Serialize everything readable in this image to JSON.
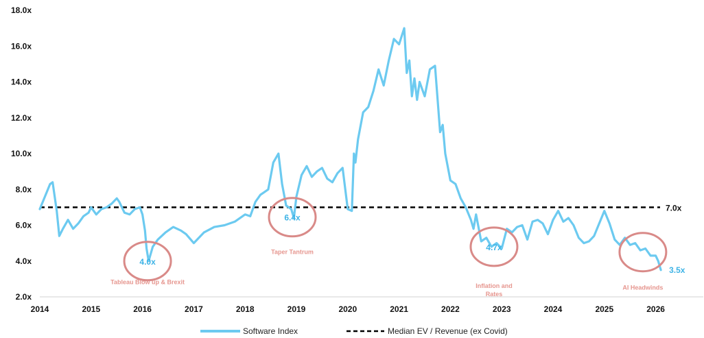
{
  "chart_data": {
    "type": "line",
    "xlim": [
      2014,
      2026.9
    ],
    "ylim": [
      2.0,
      18.0
    ],
    "x_ticks": [
      "2014",
      "2015",
      "2016",
      "2017",
      "2018",
      "2019",
      "2020",
      "2021",
      "2022",
      "2023",
      "2024",
      "2025",
      "2026"
    ],
    "y_ticks": [
      "2.0x",
      "4.0x",
      "6.0x",
      "8.0x",
      "10.0x",
      "12.0x",
      "14.0x",
      "16.0x",
      "18.0x"
    ],
    "grid": false,
    "legend_position": "bottom",
    "series": [
      {
        "name": "Software Index",
        "color": "#6ccaf0",
        "x": [
          2014.0,
          2014.1,
          2014.2,
          2014.25,
          2014.33,
          2014.38,
          2014.45,
          2014.55,
          2014.65,
          2014.75,
          2014.85,
          2014.95,
          2015.0,
          2015.1,
          2015.2,
          2015.3,
          2015.4,
          2015.5,
          2015.55,
          2015.65,
          2015.75,
          2015.85,
          2015.95,
          2016.0,
          2016.05,
          2016.08,
          2016.12,
          2016.2,
          2016.3,
          2016.45,
          2016.6,
          2016.75,
          2016.85,
          2017.0,
          2017.2,
          2017.4,
          2017.6,
          2017.8,
          2018.0,
          2018.1,
          2018.2,
          2018.3,
          2018.45,
          2018.55,
          2018.65,
          2018.72,
          2018.8,
          2018.9,
          2018.95,
          2019.0,
          2019.1,
          2019.2,
          2019.3,
          2019.4,
          2019.5,
          2019.6,
          2019.7,
          2019.8,
          2019.9,
          2020.0,
          2020.08,
          2020.12,
          2020.15,
          2020.2,
          2020.3,
          2020.4,
          2020.5,
          2020.6,
          2020.7,
          2020.8,
          2020.9,
          2021.0,
          2021.1,
          2021.15,
          2021.2,
          2021.25,
          2021.3,
          2021.35,
          2021.4,
          2021.5,
          2021.6,
          2021.7,
          2021.8,
          2021.85,
          2021.9,
          2022.0,
          2022.1,
          2022.2,
          2022.3,
          2022.4,
          2022.45,
          2022.5,
          2022.6,
          2022.7,
          2022.8,
          2022.9,
          2023.0,
          2023.1,
          2023.2,
          2023.3,
          2023.4,
          2023.5,
          2023.6,
          2023.7,
          2023.8,
          2023.9,
          2024.0,
          2024.1,
          2024.2,
          2024.3,
          2024.4,
          2024.5,
          2024.6,
          2024.7,
          2024.8,
          2024.9,
          2025.0,
          2025.1,
          2025.2,
          2025.3,
          2025.4,
          2025.5,
          2025.6,
          2025.7,
          2025.8,
          2025.9,
          2026.0,
          2026.05,
          2026.1
        ],
        "values": [
          6.9,
          7.6,
          8.3,
          8.4,
          6.8,
          5.4,
          5.8,
          6.3,
          5.8,
          6.1,
          6.5,
          6.7,
          7.0,
          6.6,
          6.9,
          7.0,
          7.2,
          7.5,
          7.3,
          6.7,
          6.6,
          6.9,
          7.0,
          6.6,
          5.7,
          4.7,
          4.0,
          4.8,
          5.2,
          5.6,
          5.9,
          5.7,
          5.5,
          5.0,
          5.6,
          5.9,
          6.0,
          6.2,
          6.6,
          6.5,
          7.3,
          7.7,
          8.0,
          9.5,
          10.0,
          8.3,
          7.1,
          6.9,
          6.4,
          7.6,
          8.8,
          9.3,
          8.7,
          9.0,
          9.2,
          8.6,
          8.4,
          8.9,
          9.2,
          6.9,
          6.8,
          10.0,
          9.5,
          10.8,
          12.3,
          12.6,
          13.5,
          14.7,
          13.8,
          15.2,
          16.4,
          16.1,
          17.0,
          14.5,
          15.2,
          13.2,
          14.2,
          13.0,
          14.0,
          13.2,
          14.7,
          14.9,
          11.2,
          11.6,
          10.0,
          8.5,
          8.3,
          7.5,
          7.0,
          6.3,
          5.8,
          6.6,
          5.1,
          5.3,
          4.8,
          5.0,
          4.7,
          5.8,
          5.6,
          5.9,
          6.0,
          5.2,
          6.2,
          6.3,
          6.1,
          5.5,
          6.3,
          6.8,
          6.2,
          6.4,
          6.0,
          5.3,
          5.0,
          5.1,
          5.4,
          6.1,
          6.8,
          6.1,
          5.2,
          4.9,
          5.3,
          4.9,
          5.0,
          4.6,
          4.7,
          4.3,
          4.3,
          4.0,
          3.5
        ]
      },
      {
        "name": "Median EV / Revenue (ex Covid)",
        "color": "#000000",
        "value": 7.0
      }
    ],
    "median_label": "7.0x",
    "end_label": "3.5x",
    "annotations": [
      {
        "value_label": "4.0x",
        "caption": [
          "Tableau Blow up & Brexit"
        ],
        "x": 2016.1,
        "y": 4.0,
        "caption_y": 2.7
      },
      {
        "value_label": "6.4x",
        "caption": [
          "Taper Tantrum"
        ],
        "x": 2018.92,
        "y": 6.45,
        "caption_y": 4.4
      },
      {
        "value_label": "4.7x",
        "caption": [
          "Inflation and",
          "Rates"
        ],
        "x": 2022.85,
        "y": 4.8,
        "caption_y": 2.5
      },
      {
        "value_label": "",
        "caption": [
          "AI Headwinds"
        ],
        "x": 2025.75,
        "y": 4.5,
        "caption_y": 2.4
      }
    ],
    "annotation_circle_color": "#d98a88",
    "annotation_caption_color": "#e6968f",
    "annotation_value_color": "#3db3e6"
  }
}
